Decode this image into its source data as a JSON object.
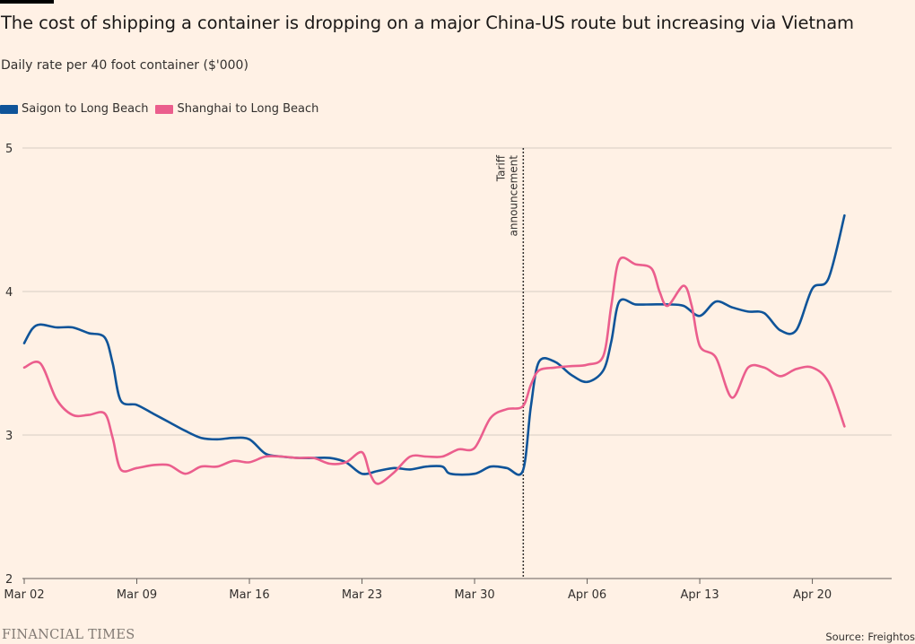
{
  "title": "The cost of shipping a container is dropping on a major China-US route but increasing via Vietnam",
  "subtitle": "Daily rate per 40 foot container ($'000)",
  "legend": [
    {
      "label": "Saigon to Long Beach",
      "color": "#0f5499"
    },
    {
      "label": "Shanghai to Long Beach",
      "color": "#eb5e8d"
    }
  ],
  "annotation": {
    "line1": "Tariff",
    "line2": "announcement"
  },
  "brand": "FINANCIAL TIMES",
  "source": "Source: Freightos",
  "chart_data": {
    "type": "line",
    "ylim": [
      2,
      5
    ],
    "yticks": [
      "2",
      "3",
      "4",
      "5"
    ],
    "xticks": [
      "Mar 02",
      "Mar 09",
      "Mar 16",
      "Mar 23",
      "Mar 30",
      "Apr 06",
      "Apr 13",
      "Apr 20"
    ],
    "x_unit": "days since Mar 02 (2025)",
    "xlim": [
      0,
      54
    ],
    "annotation_x": 31,
    "xlabel": "",
    "ylabel": "",
    "grid": true,
    "series": [
      {
        "name": "Saigon to Long Beach",
        "color": "#0f5499",
        "points": [
          [
            0,
            3.64
          ],
          [
            0.5,
            3.74
          ],
          [
            1,
            3.77
          ],
          [
            2,
            3.75
          ],
          [
            3,
            3.75
          ],
          [
            4,
            3.71
          ],
          [
            5,
            3.68
          ],
          [
            5.5,
            3.5
          ],
          [
            6,
            3.24
          ],
          [
            7,
            3.21
          ],
          [
            8,
            3.15
          ],
          [
            9,
            3.09
          ],
          [
            10,
            3.03
          ],
          [
            11,
            2.98
          ],
          [
            12,
            2.97
          ],
          [
            13,
            2.98
          ],
          [
            14,
            2.97
          ],
          [
            15,
            2.87
          ],
          [
            16,
            2.85
          ],
          [
            17,
            2.84
          ],
          [
            18,
            2.84
          ],
          [
            19,
            2.84
          ],
          [
            20,
            2.81
          ],
          [
            21,
            2.73
          ],
          [
            22,
            2.75
          ],
          [
            23,
            2.77
          ],
          [
            24,
            2.76
          ],
          [
            25,
            2.78
          ],
          [
            26,
            2.78
          ],
          [
            26.5,
            2.73
          ],
          [
            28,
            2.73
          ],
          [
            29,
            2.78
          ],
          [
            30,
            2.77
          ],
          [
            31,
            2.75
          ],
          [
            31.5,
            3.2
          ],
          [
            32,
            3.51
          ],
          [
            33,
            3.51
          ],
          [
            34,
            3.42
          ],
          [
            35,
            3.37
          ],
          [
            36,
            3.45
          ],
          [
            36.5,
            3.65
          ],
          [
            37,
            3.93
          ],
          [
            38,
            3.91
          ],
          [
            39,
            3.91
          ],
          [
            40,
            3.91
          ],
          [
            41,
            3.9
          ],
          [
            42,
            3.83
          ],
          [
            43,
            3.93
          ],
          [
            44,
            3.89
          ],
          [
            45,
            3.86
          ],
          [
            46,
            3.85
          ],
          [
            47,
            3.73
          ],
          [
            48,
            3.73
          ],
          [
            49,
            4.02
          ],
          [
            50,
            4.09
          ],
          [
            51,
            4.53
          ]
        ]
      },
      {
        "name": "Shanghai to Long Beach",
        "color": "#eb5e8d",
        "points": [
          [
            0,
            3.47
          ],
          [
            1,
            3.5
          ],
          [
            2,
            3.25
          ],
          [
            3,
            3.14
          ],
          [
            4,
            3.14
          ],
          [
            5,
            3.15
          ],
          [
            5.5,
            2.98
          ],
          [
            6,
            2.76
          ],
          [
            7,
            2.77
          ],
          [
            8,
            2.79
          ],
          [
            9,
            2.79
          ],
          [
            10,
            2.73
          ],
          [
            11,
            2.78
          ],
          [
            12,
            2.78
          ],
          [
            13,
            2.82
          ],
          [
            14,
            2.81
          ],
          [
            15,
            2.85
          ],
          [
            16,
            2.85
          ],
          [
            17,
            2.84
          ],
          [
            18,
            2.84
          ],
          [
            19,
            2.8
          ],
          [
            20,
            2.81
          ],
          [
            21,
            2.88
          ],
          [
            21.5,
            2.73
          ],
          [
            22,
            2.66
          ],
          [
            23,
            2.74
          ],
          [
            24,
            2.85
          ],
          [
            25,
            2.85
          ],
          [
            26,
            2.85
          ],
          [
            27,
            2.9
          ],
          [
            28,
            2.91
          ],
          [
            29,
            3.12
          ],
          [
            30,
            3.18
          ],
          [
            31,
            3.2
          ],
          [
            31.5,
            3.35
          ],
          [
            32,
            3.45
          ],
          [
            33,
            3.47
          ],
          [
            34,
            3.48
          ],
          [
            35,
            3.49
          ],
          [
            36,
            3.55
          ],
          [
            36.5,
            3.9
          ],
          [
            37,
            4.22
          ],
          [
            38,
            4.19
          ],
          [
            39,
            4.16
          ],
          [
            39.5,
            4.0
          ],
          [
            40,
            3.9
          ],
          [
            41,
            4.04
          ],
          [
            41.5,
            3.9
          ],
          [
            42,
            3.62
          ],
          [
            43,
            3.54
          ],
          [
            44,
            3.26
          ],
          [
            45,
            3.47
          ],
          [
            46,
            3.47
          ],
          [
            47,
            3.41
          ],
          [
            48,
            3.46
          ],
          [
            49,
            3.47
          ],
          [
            50,
            3.37
          ],
          [
            51,
            3.06
          ]
        ]
      }
    ]
  }
}
